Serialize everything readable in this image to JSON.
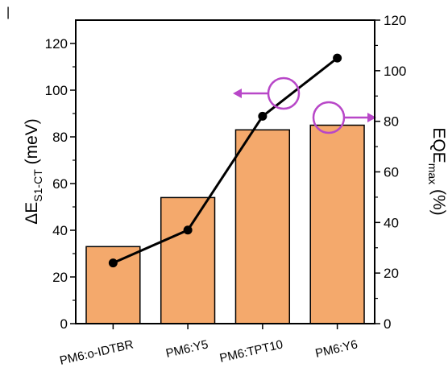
{
  "chart_data": {
    "type": "bar",
    "categories": [
      "PM6:o-IDTBR",
      "PM6:Y5",
      "PM6:TPT10",
      "PM6:Y6"
    ],
    "series": [
      {
        "axis": "left",
        "type": "bar",
        "values": [
          33,
          54,
          83,
          85
        ],
        "color": "#F4A96C"
      },
      {
        "axis": "right",
        "type": "line",
        "values": [
          24,
          37,
          82,
          105
        ],
        "color": "#000000"
      }
    ],
    "ylabel_left": {
      "main": "ΔE",
      "sub": "S1-CT",
      "unit": " (meV)"
    },
    "ylabel_right": {
      "main": "EQE",
      "sub": "max",
      "unit": " (%)"
    },
    "ylim_left": [
      0,
      130
    ],
    "ylim_right": [
      0,
      120
    ],
    "yticks_left": [
      "0",
      "20",
      "40",
      "60",
      "80",
      "100",
      "120"
    ],
    "yticks_right": [
      "0",
      "20",
      "40",
      "60",
      "80",
      "100",
      "120"
    ],
    "annotations": [
      {
        "marker": "circle-arrow",
        "direction": "left",
        "axis": "left",
        "color": "#B847C8"
      },
      {
        "marker": "circle-arrow",
        "direction": "right",
        "axis": "right",
        "color": "#B847C8"
      }
    ]
  }
}
